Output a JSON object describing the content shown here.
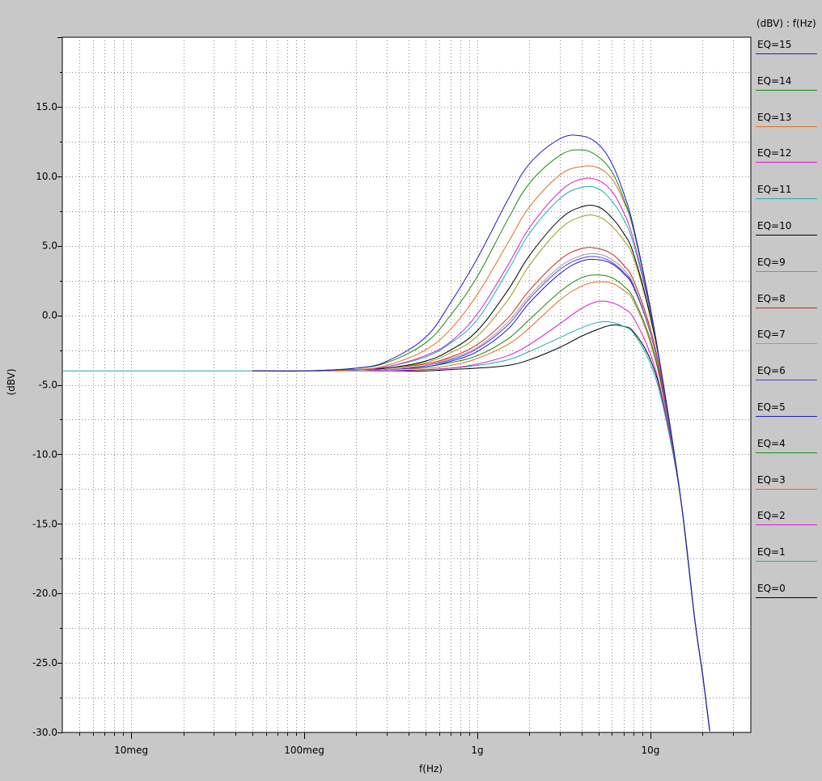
{
  "chart_data": {
    "type": "line",
    "xlabel": "f(Hz)",
    "ylabel": "(dBV)",
    "x_scale": "log",
    "xlim": [
      4000000,
      38000000000
    ],
    "ylim": [
      -30.0,
      20.0
    ],
    "x_ticks": [
      {
        "value": 10000000,
        "label": "10meg"
      },
      {
        "value": 100000000,
        "label": "100meg"
      },
      {
        "value": 1000000000,
        "label": "1g"
      },
      {
        "value": 10000000000,
        "label": "10g"
      }
    ],
    "y_ticks": [
      {
        "value": 15.0,
        "label": "15.0"
      },
      {
        "value": 10.0,
        "label": "10.0"
      },
      {
        "value": 5.0,
        "label": "5.0"
      },
      {
        "value": 0.0,
        "label": "0.0"
      },
      {
        "value": -5.0,
        "label": "-5.0"
      },
      {
        "value": -10.0,
        "label": "-10.0"
      },
      {
        "value": -15.0,
        "label": "-15.0"
      },
      {
        "value": -20.0,
        "label": "-20.0"
      },
      {
        "value": -25.0,
        "label": "-25.0"
      },
      {
        "value": -30.0,
        "label": "-30.0"
      }
    ],
    "grid": true,
    "legend_title": "(dBV) : f(Hz)",
    "legend_position": "right",
    "x": [
      50000000,
      100000000,
      200000000,
      300000000,
      500000000,
      700000000,
      1000000000,
      1500000000,
      2000000000,
      3000000000,
      4000000000,
      5000000000,
      6000000000,
      7000000000,
      8000000000,
      10000000000,
      12000000000,
      15000000000,
      18000000000,
      20000000000,
      22000000000
    ],
    "series": [
      {
        "name": "EQ=15",
        "color": "#1c1ccc",
        "values": [
          -4.0,
          -4.0,
          -3.8,
          -3.3,
          -1.6,
          0.9,
          4.1,
          8.3,
          10.9,
          12.7,
          12.9,
          12.3,
          10.9,
          8.8,
          6.3,
          0.5,
          -5.3,
          -13.3,
          -21.8,
          -25.8,
          -29.9
        ]
      },
      {
        "name": "EQ=14",
        "color": "#0e8c0e",
        "values": [
          -4.0,
          -4.0,
          -3.8,
          -3.4,
          -2.0,
          0.0,
          2.8,
          6.9,
          9.5,
          11.5,
          11.9,
          11.4,
          10.3,
          8.4,
          6.1,
          0.4,
          -5.3,
          -13.3,
          -21.8,
          -25.8,
          -29.9
        ]
      },
      {
        "name": "EQ=13",
        "color": "#e07020",
        "values": [
          -4.0,
          -4.0,
          -3.9,
          -3.6,
          -2.5,
          -1.0,
          1.5,
          5.2,
          7.8,
          10.1,
          10.7,
          10.6,
          9.8,
          8.2,
          6.1,
          0.5,
          -5.3,
          -13.3,
          -21.8,
          -25.8,
          -29.9
        ]
      },
      {
        "name": "EQ=12",
        "color": "#d81ad8",
        "values": [
          -4.0,
          -4.0,
          -3.9,
          -3.7,
          -2.9,
          -1.9,
          0.1,
          3.6,
          6.3,
          8.9,
          9.8,
          9.7,
          8.9,
          7.4,
          5.4,
          0.3,
          -5.3,
          -13.3,
          -21.8,
          -25.8,
          -29.9
        ]
      },
      {
        "name": "EQ=11",
        "color": "#18b0b0",
        "values": [
          -4.0,
          -4.0,
          -3.9,
          -3.7,
          -3.0,
          -2.0,
          -0.3,
          3.2,
          5.9,
          8.4,
          9.2,
          9.1,
          8.2,
          6.9,
          5.1,
          0.2,
          -5.3,
          -13.3,
          -21.8,
          -25.8,
          -29.9
        ]
      },
      {
        "name": "EQ=10",
        "color": "#000000",
        "values": [
          -4.0,
          -4.0,
          -3.9,
          -3.8,
          -3.3,
          -2.5,
          -1.1,
          1.8,
          4.3,
          6.9,
          7.8,
          7.8,
          7.0,
          5.9,
          4.4,
          -0.1,
          -5.3,
          -13.3,
          -21.8,
          -25.8,
          -29.9
        ]
      },
      {
        "name": "EQ=9",
        "color": "#a09a10",
        "values": [
          -4.0,
          -4.0,
          -3.9,
          -3.8,
          -3.4,
          -2.7,
          -1.5,
          1.1,
          3.6,
          6.2,
          7.1,
          7.1,
          6.4,
          5.4,
          4.1,
          -0.2,
          -5.3,
          -13.3,
          -21.8,
          -25.8,
          -29.9
        ]
      },
      {
        "name": "EQ=8",
        "color": "#d42020",
        "values": [
          -4.0,
          -4.0,
          -3.9,
          -3.8,
          -3.5,
          -3.0,
          -2.1,
          -0.2,
          1.8,
          4.0,
          4.8,
          4.8,
          4.4,
          3.6,
          2.5,
          -1.0,
          -5.6,
          -13.3,
          -21.8,
          -25.8,
          -29.9
        ]
      },
      {
        "name": "EQ=7",
        "color": "#9a9a9a",
        "values": [
          -4.0,
          -4.0,
          -4.0,
          -3.9,
          -3.6,
          -3.1,
          -2.3,
          -0.5,
          1.4,
          3.5,
          4.3,
          4.4,
          4.0,
          3.3,
          2.2,
          -1.2,
          -5.7,
          -13.3,
          -21.8,
          -25.8,
          -29.9
        ]
      },
      {
        "name": "EQ=6",
        "color": "#5a3ad0",
        "values": [
          -4.0,
          -4.0,
          -4.0,
          -3.9,
          -3.6,
          -3.2,
          -2.4,
          -0.7,
          1.2,
          3.3,
          4.1,
          4.2,
          3.8,
          3.1,
          2.1,
          -1.3,
          -5.8,
          -13.3,
          -21.8,
          -25.8,
          -29.9
        ]
      },
      {
        "name": "EQ=5",
        "color": "#1c1ccc",
        "values": [
          -4.0,
          -4.0,
          -4.0,
          -3.9,
          -3.7,
          -3.3,
          -2.6,
          -1.0,
          0.9,
          3.0,
          3.9,
          4.0,
          3.7,
          3.0,
          2.0,
          -1.3,
          -5.8,
          -13.3,
          -21.8,
          -25.8,
          -29.9
        ]
      },
      {
        "name": "EQ=4",
        "color": "#0e8c0e",
        "values": [
          -4.0,
          -4.0,
          -4.0,
          -3.9,
          -3.7,
          -3.4,
          -2.9,
          -1.7,
          -0.3,
          1.7,
          2.7,
          2.9,
          2.7,
          2.1,
          1.2,
          -1.8,
          -6.0,
          -13.3,
          -21.8,
          -25.8,
          -29.9
        ]
      },
      {
        "name": "EQ=3",
        "color": "#e07020",
        "values": [
          -4.0,
          -4.0,
          -4.0,
          -3.9,
          -3.8,
          -3.6,
          -3.1,
          -2.1,
          -0.9,
          1.1,
          2.1,
          2.4,
          2.3,
          1.8,
          1.0,
          -2.0,
          -6.1,
          -13.3,
          -21.8,
          -25.8,
          -29.9
        ]
      },
      {
        "name": "EQ=2",
        "color": "#d81ad8",
        "values": [
          -4.0,
          -4.0,
          -4.0,
          -4.0,
          -3.9,
          -3.8,
          -3.5,
          -2.9,
          -2.1,
          -0.6,
          0.5,
          1.0,
          0.9,
          0.5,
          -0.2,
          -2.8,
          -6.5,
          -13.3,
          -21.8,
          -25.8,
          -29.9
        ]
      },
      {
        "name": "EQ=1",
        "color": "#18b0b0",
        "values": [
          -4.0,
          -4.0,
          -4.0,
          -4.0,
          -3.9,
          -3.8,
          -3.6,
          -3.2,
          -2.6,
          -1.6,
          -0.9,
          -0.5,
          -0.5,
          -0.8,
          -1.3,
          -3.5,
          -6.9,
          -13.3,
          -21.8,
          -25.8,
          -29.9
        ]
      },
      {
        "name": "EQ=0",
        "color": "#000000",
        "values": [
          -4.0,
          -4.0,
          -4.0,
          -4.0,
          -4.0,
          -3.9,
          -3.8,
          -3.6,
          -3.2,
          -2.3,
          -1.5,
          -1.0,
          -0.7,
          -0.8,
          -1.2,
          -3.2,
          -6.6,
          -13.3,
          -21.8,
          -25.8,
          -29.9
        ]
      }
    ]
  }
}
